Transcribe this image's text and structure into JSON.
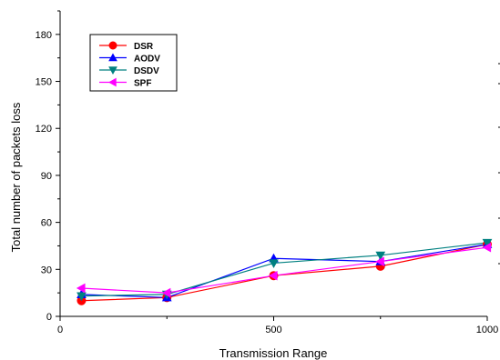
{
  "chart_data": {
    "type": "line",
    "title": "",
    "xlabel": "Transmission Range",
    "ylabel": "Total number of packets loss",
    "xlim": [
      0,
      1000
    ],
    "ylim": [
      0,
      195
    ],
    "x_ticks": [
      0,
      500,
      1000
    ],
    "y_ticks": [
      0,
      30,
      60,
      90,
      120,
      150,
      180
    ],
    "x_tick_labels": [
      "0",
      "500",
      "1000"
    ],
    "y_tick_labels": [
      "0",
      "30",
      "60",
      "90",
      "120",
      "150",
      "180"
    ],
    "grid": false,
    "legend_position": "top-left",
    "series": [
      {
        "name": "DSR",
        "color": "#ff0000",
        "marker": "circle",
        "x": [
          50,
          250,
          500,
          750,
          1000
        ],
        "y": [
          10,
          12,
          26,
          32,
          46
        ]
      },
      {
        "name": "AODV",
        "color": "#0000ff",
        "marker": "triangle-up",
        "x": [
          50,
          250,
          500,
          750,
          1000
        ],
        "y": [
          14,
          12,
          37,
          35,
          46
        ]
      },
      {
        "name": "DSDV",
        "color": "#008080",
        "marker": "triangle-down",
        "x": [
          50,
          250,
          500,
          750,
          1000
        ],
        "y": [
          13,
          14,
          34,
          39,
          47
        ]
      },
      {
        "name": "SPF",
        "color": "#ff00ff",
        "marker": "triangle-left",
        "x": [
          50,
          250,
          500,
          750,
          1000
        ],
        "y": [
          18,
          15,
          26,
          35,
          44
        ]
      }
    ]
  }
}
